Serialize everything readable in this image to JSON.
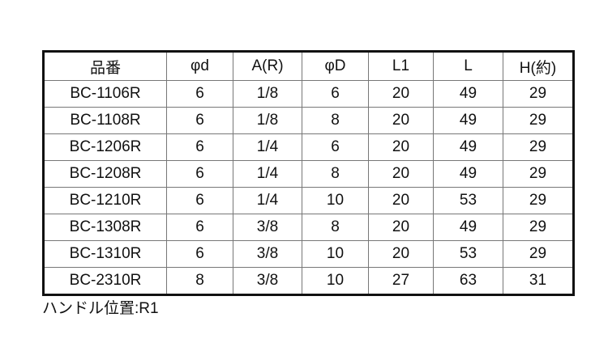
{
  "table": {
    "headers": [
      "品番",
      "φd",
      "A(R)",
      "φD",
      "L1",
      "L",
      "H(約)"
    ],
    "rows": [
      [
        "BC-1106R",
        "6",
        "1/8",
        "6",
        "20",
        "49",
        "29"
      ],
      [
        "BC-1108R",
        "6",
        "1/8",
        "8",
        "20",
        "49",
        "29"
      ],
      [
        "BC-1206R",
        "6",
        "1/4",
        "6",
        "20",
        "49",
        "29"
      ],
      [
        "BC-1208R",
        "6",
        "1/4",
        "8",
        "20",
        "49",
        "29"
      ],
      [
        "BC-1210R",
        "6",
        "1/4",
        "10",
        "20",
        "53",
        "29"
      ],
      [
        "BC-1308R",
        "6",
        "3/8",
        "8",
        "20",
        "49",
        "29"
      ],
      [
        "BC-1310R",
        "6",
        "3/8",
        "10",
        "20",
        "53",
        "29"
      ],
      [
        "BC-2310R",
        "8",
        "3/8",
        "10",
        "27",
        "63",
        "31"
      ]
    ]
  },
  "note": "ハンドル位置:R1"
}
